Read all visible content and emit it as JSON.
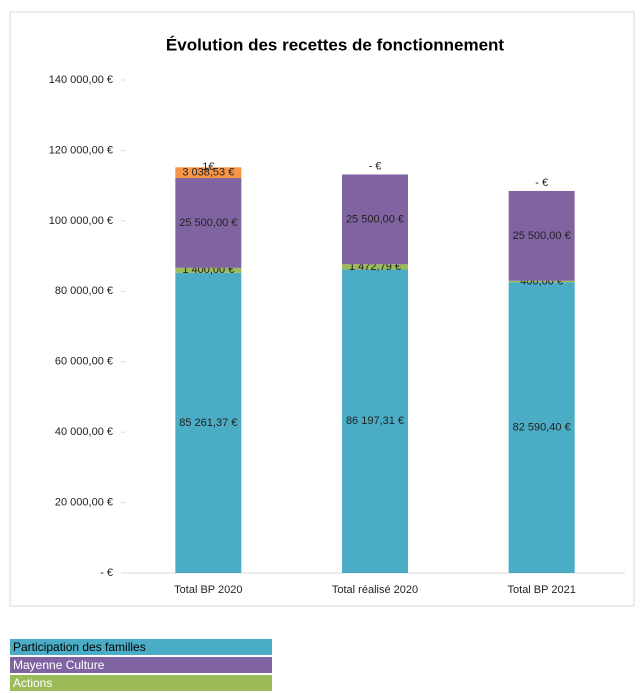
{
  "chart_data": {
    "type": "stacked_bar",
    "title": "Évolution des recettes de fonctionnement",
    "categories": [
      "Total BP 2020",
      "Total réalisé 2020",
      "Total BP 2021"
    ],
    "series": [
      {
        "name": "Participation des familles",
        "color": "#4bacc6",
        "values": [
          85261.37,
          86197.31,
          82590.4
        ],
        "value_labels": [
          "85 261,37 €",
          "86 197,31 €",
          "82 590,40 €"
        ]
      },
      {
        "name": "Actions",
        "color": "#9bbb59",
        "values": [
          1400,
          1472.79,
          400
        ],
        "value_labels": [
          "1 400,00 €",
          "1 472,79 €",
          "400,00 €"
        ]
      },
      {
        "name": "Mayenne Culture",
        "color": "#8064a2",
        "values": [
          25500,
          25500,
          25500
        ],
        "value_labels": [
          "25 500,00 €",
          "25 500,00 €",
          "25 500,00 €"
        ]
      },
      {
        "color": "#f79646",
        "values": [
          3038.53,
          0,
          0
        ],
        "value_labels": [
          "3 038,53 €",
          "- €",
          "- €"
        ]
      },
      {
        "color": "#c0504d",
        "values": [
          1,
          null,
          null
        ],
        "value_labels": [
          "1€",
          null,
          null
        ]
      }
    ],
    "legend_order": [
      0,
      2,
      1
    ],
    "ylim": [
      0,
      140000
    ],
    "yticks": [
      {
        "value": 0,
        "label": "- €"
      },
      {
        "value": 20000,
        "label": "20 000,00 €"
      },
      {
        "value": 40000,
        "label": "40 000,00 €"
      },
      {
        "value": 60000,
        "label": "60 000,00 €"
      },
      {
        "value": 80000,
        "label": "80 000,00 €"
      },
      {
        "value": 100000,
        "label": "100 000,00 €"
      },
      {
        "value": 120000,
        "label": "120 000,00 €"
      },
      {
        "value": 140000,
        "label": "140 000,00 €"
      }
    ],
    "grid": false
  }
}
